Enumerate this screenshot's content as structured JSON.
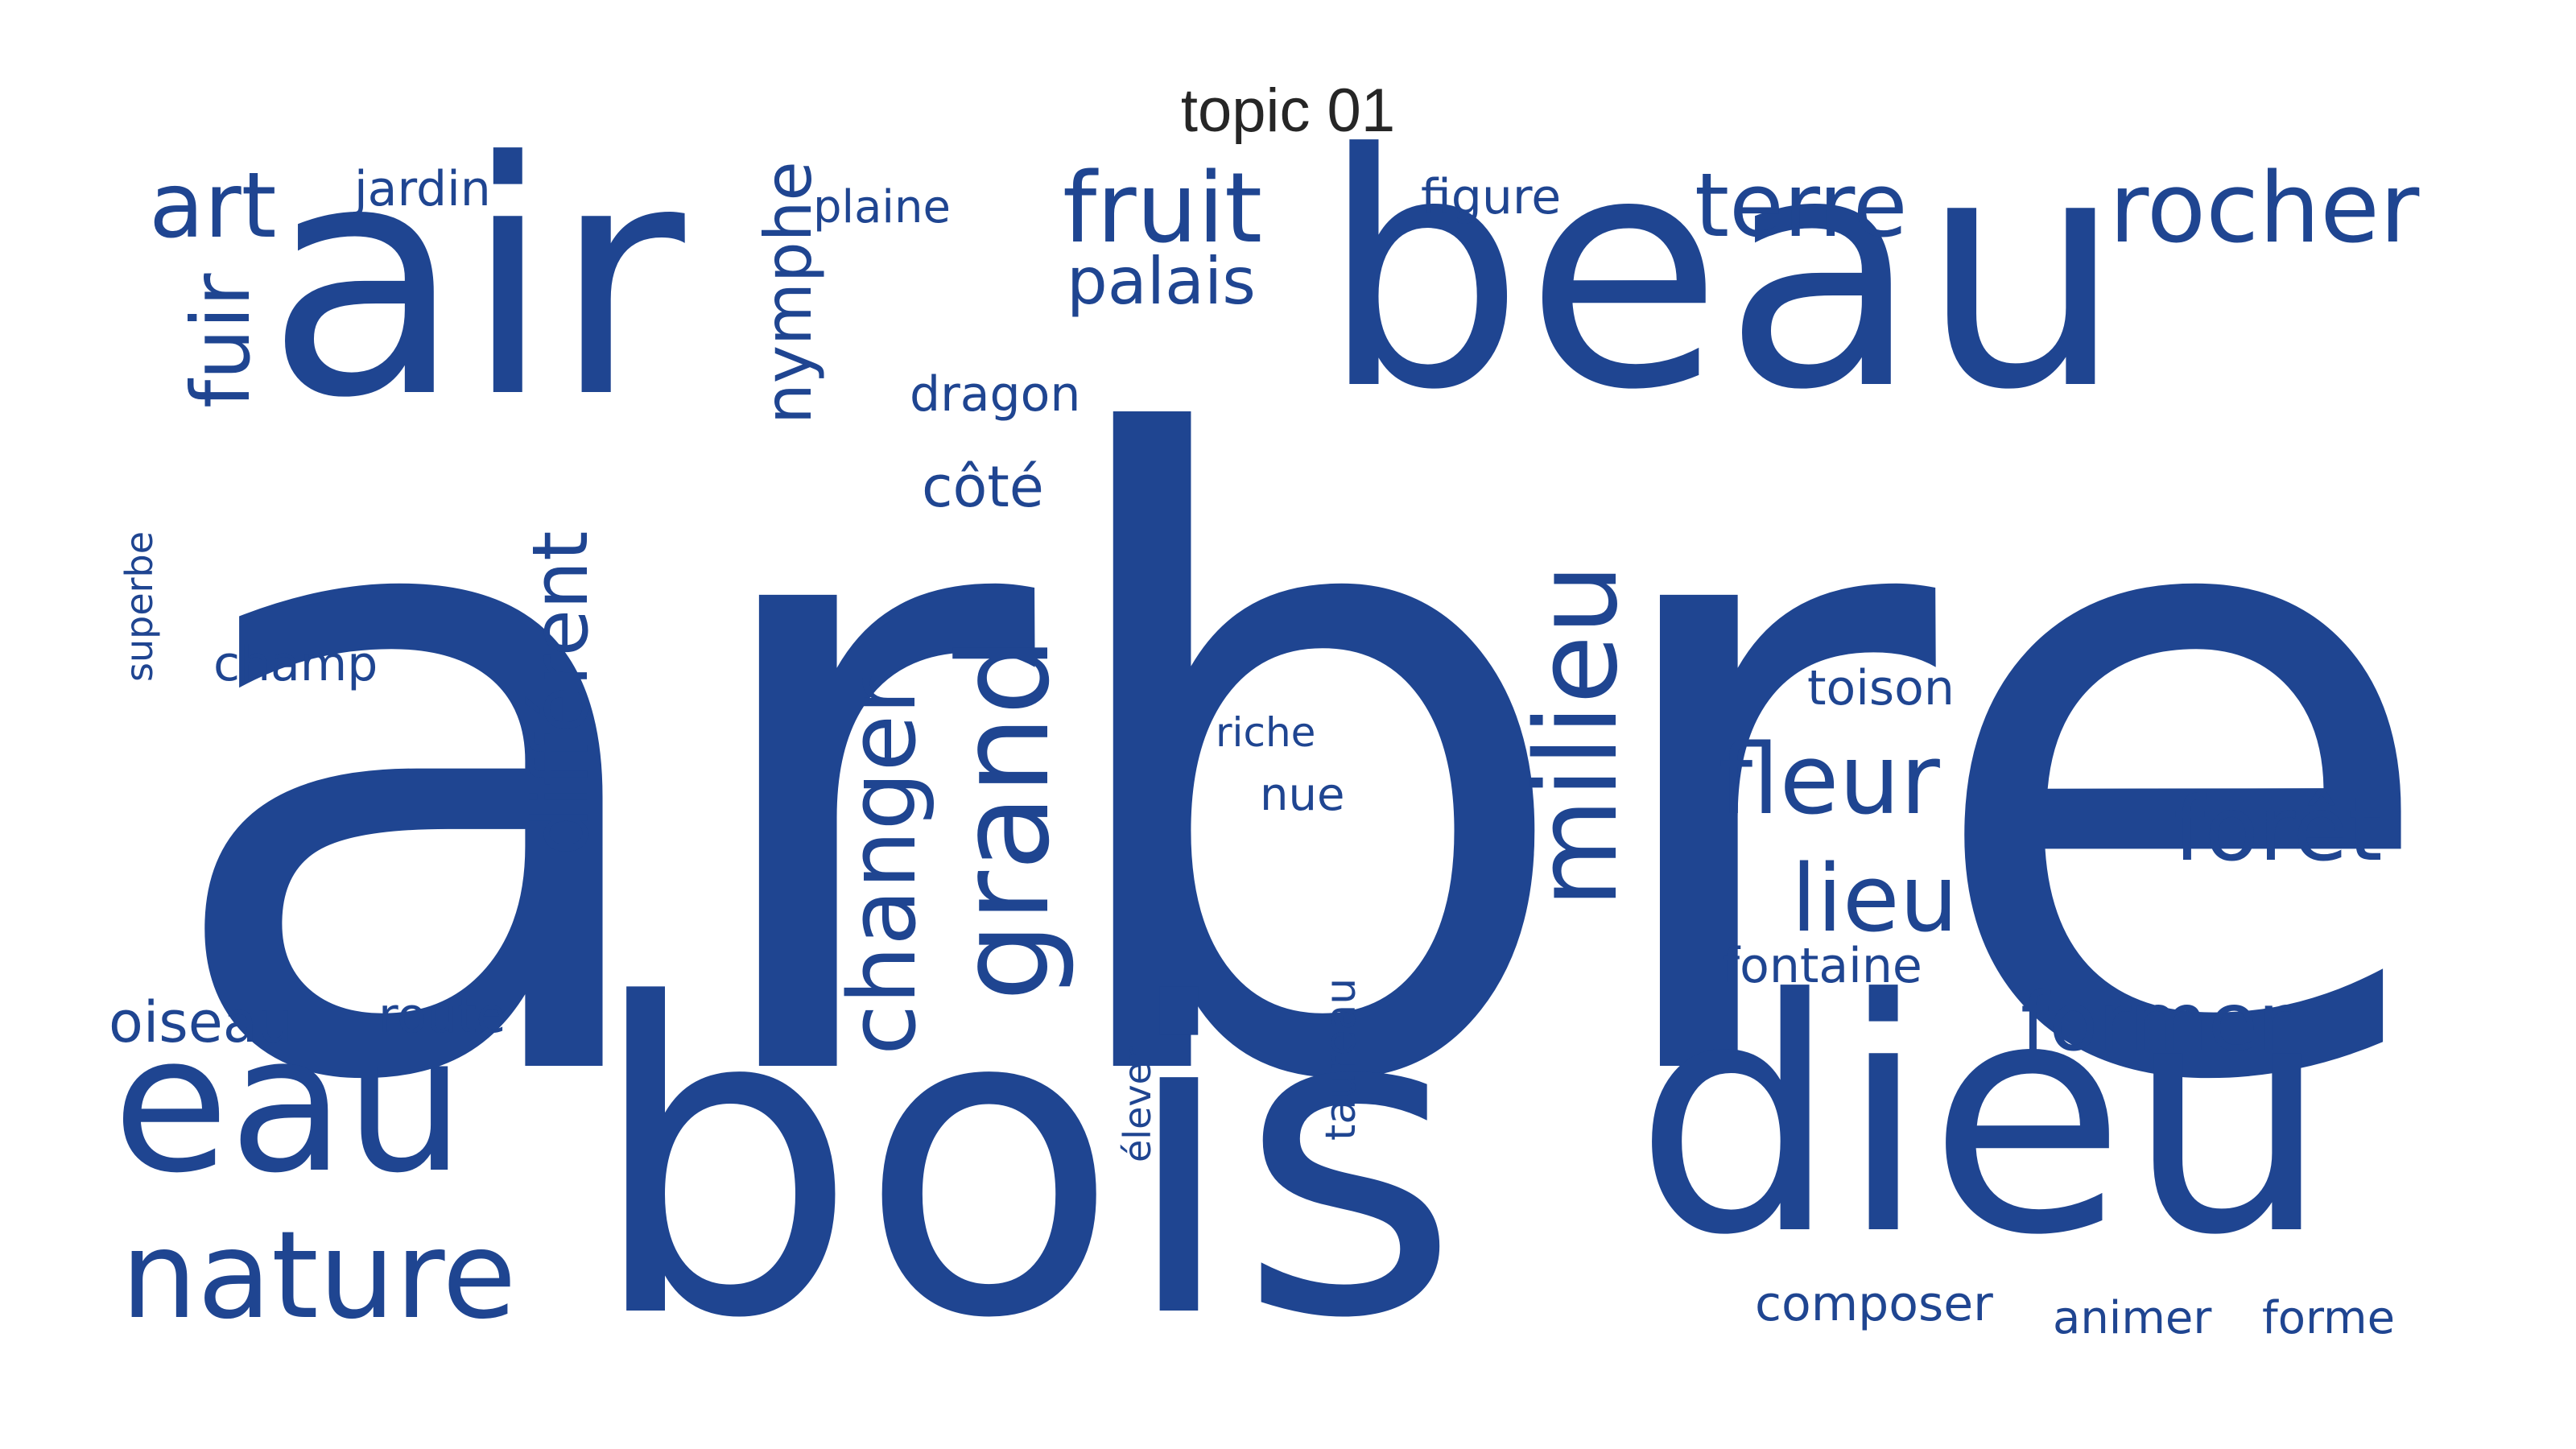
{
  "title": "topic 01",
  "colors": {
    "word": "#1f4591",
    "background": "#ffffff",
    "title": "#262626"
  },
  "words": [
    {
      "text": "arbre",
      "weight": 1.0
    },
    {
      "text": "bois",
      "weight": 0.68
    },
    {
      "text": "air",
      "weight": 0.47
    },
    {
      "text": "beau",
      "weight": 0.47
    },
    {
      "text": "dieu",
      "weight": 0.44
    },
    {
      "text": "eau",
      "weight": 0.25
    },
    {
      "text": "nature",
      "weight": 0.15
    },
    {
      "text": "grand",
      "weight": 0.16
    },
    {
      "text": "milieu",
      "weight": 0.15
    },
    {
      "text": "changer",
      "weight": 0.13
    },
    {
      "text": "différent",
      "weight": 0.11
    },
    {
      "text": "fruit",
      "weight": 0.12
    },
    {
      "text": "rocher",
      "weight": 0.12
    },
    {
      "text": "art",
      "weight": 0.11
    },
    {
      "text": "terre",
      "weight": 0.11
    },
    {
      "text": "fleur",
      "weight": 0.12
    },
    {
      "text": "forêt",
      "weight": 0.11
    },
    {
      "text": "lieu",
      "weight": 0.11
    },
    {
      "text": "former",
      "weight": 0.1
    },
    {
      "text": "fuir",
      "weight": 0.09
    },
    {
      "text": "nymphe",
      "weight": 0.08
    },
    {
      "text": "palais",
      "weight": 0.08
    },
    {
      "text": "oiseau",
      "weight": 0.07
    },
    {
      "text": "champ",
      "weight": 0.06
    },
    {
      "text": "côté",
      "weight": 0.07
    },
    {
      "text": "jardin",
      "weight": 0.06
    },
    {
      "text": "plaine",
      "weight": 0.06
    },
    {
      "text": "dragon",
      "weight": 0.06
    },
    {
      "text": "figure",
      "weight": 0.06
    },
    {
      "text": "toison",
      "weight": 0.06
    },
    {
      "text": "route",
      "weight": 0.06
    },
    {
      "text": "composer",
      "weight": 0.06
    },
    {
      "text": "animer",
      "weight": 0.06
    },
    {
      "text": "forme",
      "weight": 0.06
    },
    {
      "text": "fontaine",
      "weight": 0.06
    },
    {
      "text": "nue",
      "weight": 0.05
    },
    {
      "text": "riche",
      "weight": 0.05
    },
    {
      "text": "taureau",
      "weight": 0.05
    },
    {
      "text": "élever",
      "weight": 0.04
    },
    {
      "text": "superbe",
      "weight": 0.04
    }
  ]
}
